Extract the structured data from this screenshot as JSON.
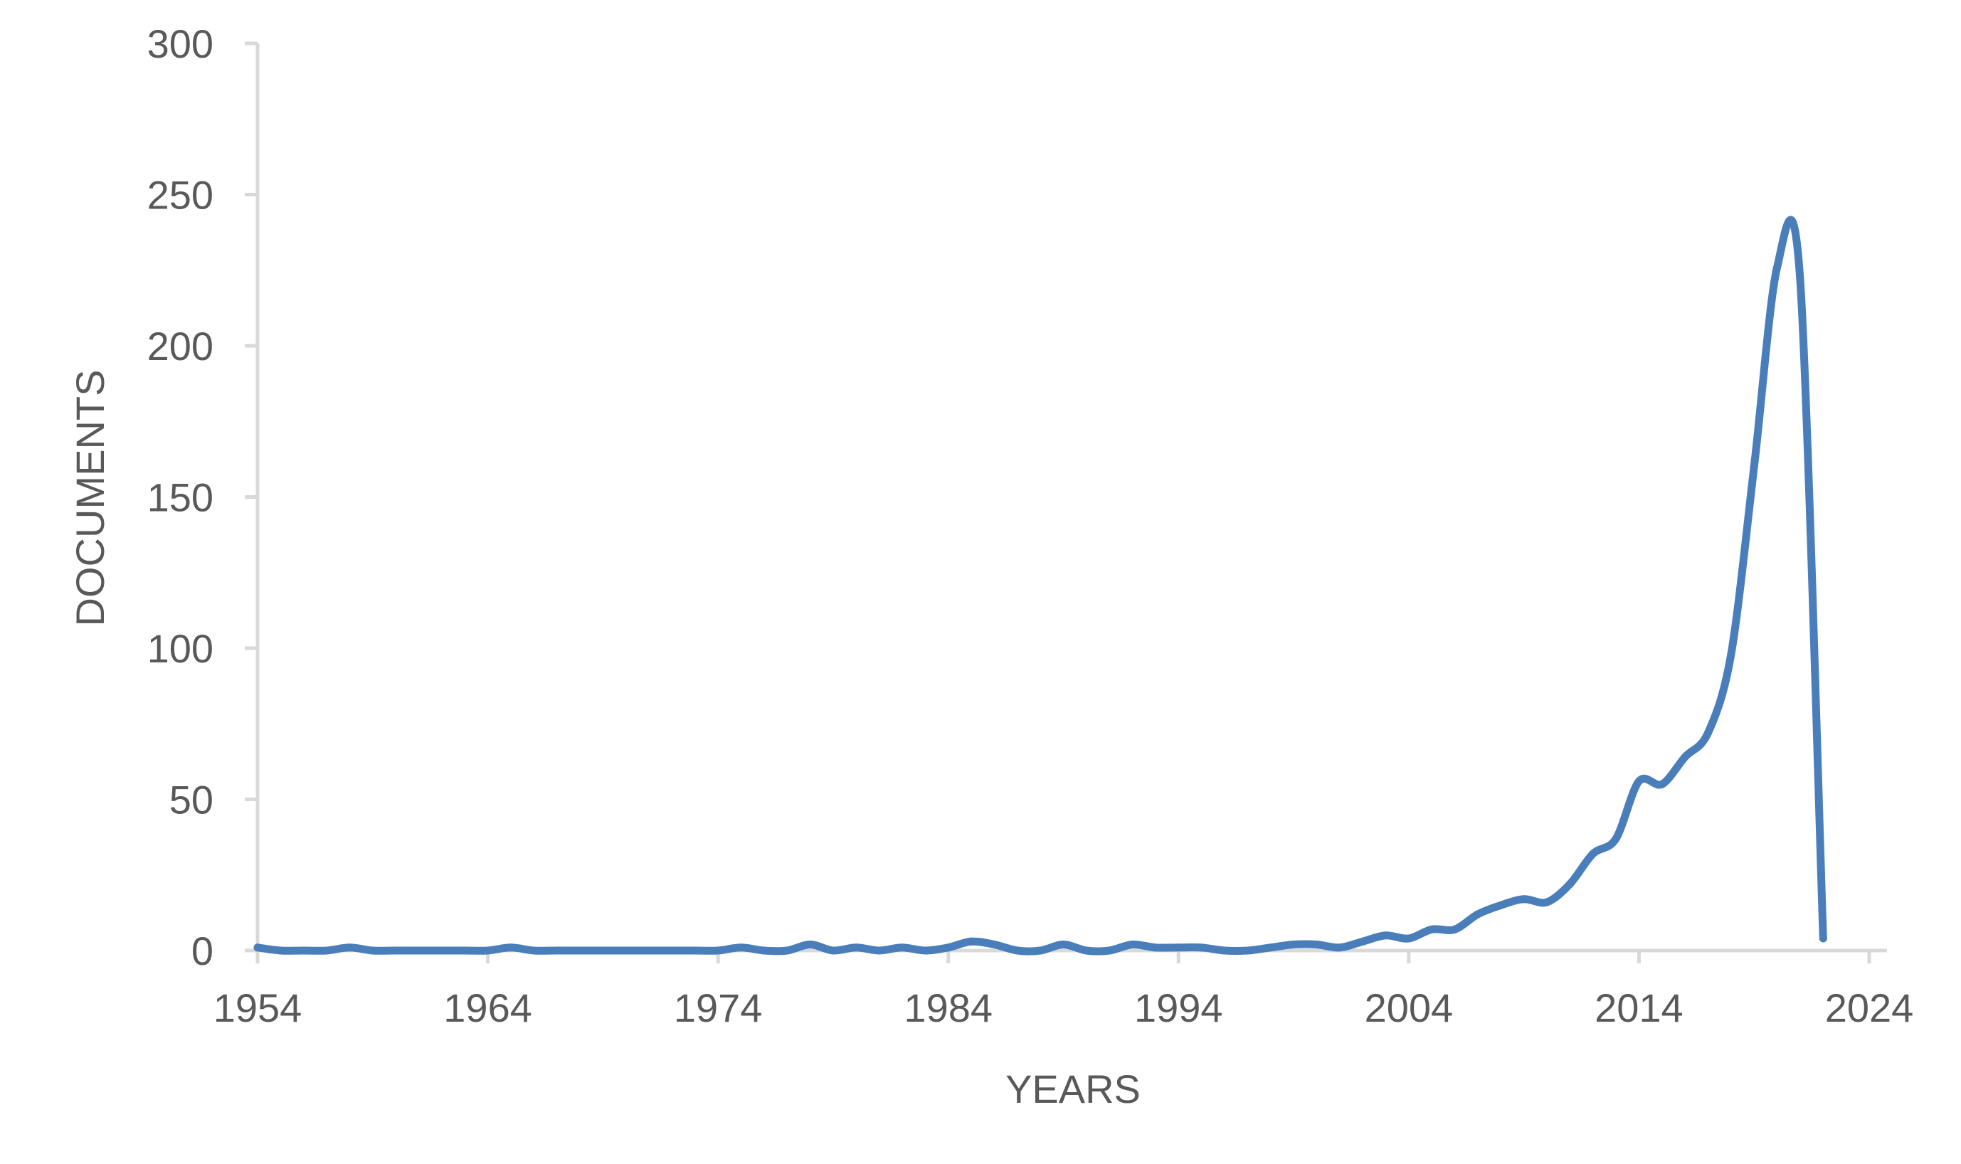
{
  "chart_data": {
    "type": "line",
    "title": "",
    "xlabel": "YEARS",
    "ylabel": "DOCUMENTS",
    "xlim": [
      1954,
      2024
    ],
    "ylim": [
      0,
      300
    ],
    "x_ticks": [
      1954,
      1964,
      1974,
      1984,
      1994,
      2004,
      2014,
      2024
    ],
    "y_ticks": [
      0,
      50,
      100,
      150,
      200,
      250,
      300
    ],
    "grid": false,
    "legend": "none",
    "series": [
      {
        "color": "#4a7ebb",
        "x": [
          1954,
          1955,
          1956,
          1957,
          1958,
          1959,
          1960,
          1961,
          1962,
          1963,
          1964,
          1965,
          1966,
          1967,
          1968,
          1969,
          1970,
          1971,
          1972,
          1973,
          1974,
          1975,
          1976,
          1977,
          1978,
          1979,
          1980,
          1981,
          1982,
          1983,
          1984,
          1985,
          1986,
          1987,
          1988,
          1989,
          1990,
          1991,
          1992,
          1993,
          1994,
          1995,
          1996,
          1997,
          1998,
          1999,
          2000,
          2001,
          2002,
          2003,
          2004,
          2005,
          2006,
          2007,
          2008,
          2009,
          2010,
          2011,
          2012,
          2013,
          2014,
          2015,
          2016,
          2017,
          2018,
          2019,
          2020,
          2021,
          2022
        ],
        "y": [
          1,
          0,
          0,
          0,
          1,
          0,
          0,
          0,
          0,
          0,
          0,
          1,
          0,
          0,
          0,
          0,
          0,
          0,
          0,
          0,
          0,
          1,
          0,
          0,
          2,
          0,
          1,
          0,
          1,
          0,
          1,
          3,
          2,
          0,
          0,
          2,
          0,
          0,
          2,
          1,
          1,
          1,
          0,
          0,
          1,
          2,
          2,
          1,
          3,
          5,
          4,
          7,
          7,
          12,
          15,
          17,
          16,
          22,
          32,
          37,
          56,
          55,
          64,
          72,
          98,
          160,
          226,
          222,
          4
        ]
      }
    ]
  }
}
